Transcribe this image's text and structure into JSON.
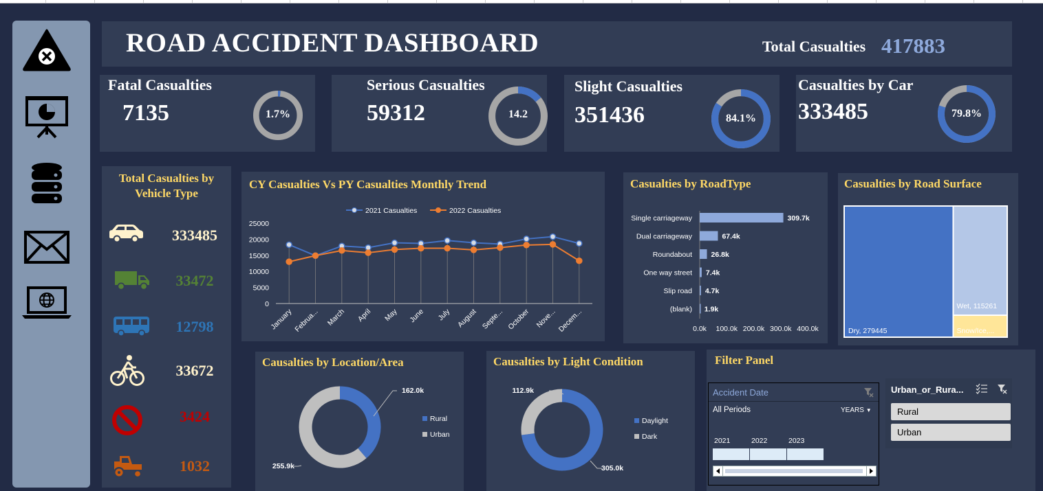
{
  "header": {
    "title": "ROAD ACCIDENT DASHBOARD",
    "total_label": "Total Casualties",
    "total_value": "417883"
  },
  "sidebar": {
    "icons": [
      "warning-icon",
      "presentation-icon",
      "database-icon",
      "mail-icon",
      "laptop-globe-icon"
    ]
  },
  "kpis": [
    {
      "label": "Fatal Casualties",
      "value": "7135",
      "pct_label": "1.7%",
      "pct": 1.7
    },
    {
      "label": "Serious Casualties",
      "value": "59312",
      "pct_label": "14.2",
      "pct": 14.2
    },
    {
      "label": "Slight Casualties",
      "value": "351436",
      "pct_label": "84.1%",
      "pct": 84.1
    },
    {
      "label": "Casualties by Car",
      "value": "333485",
      "pct_label": "79.8%",
      "pct": 79.8
    }
  ],
  "colors": {
    "accent_blue": "#4472c4",
    "ring_grey": "#a6a6a6",
    "accent_orange": "#ed7d31",
    "title_yellow": "#ffd966",
    "light_blue": "#8ea9db",
    "total_value": "#8ea9db"
  },
  "vehicle_type": {
    "title_line1": "Total Casualties by",
    "title_line2": "Vehicle Type",
    "items": [
      {
        "icon": "car-icon",
        "value": "333485",
        "color": "#fff2cc"
      },
      {
        "icon": "truck-icon",
        "value": "33472",
        "color": "#548235"
      },
      {
        "icon": "bus-icon",
        "value": "12798",
        "color": "#2e75b6"
      },
      {
        "icon": "bicycle-icon",
        "value": "33672",
        "color": "#fff2cc"
      },
      {
        "icon": "prohibited-icon",
        "value": "3424",
        "color": "#c00000"
      },
      {
        "icon": "tractor-icon",
        "value": "1032",
        "color": "#c55a11"
      }
    ]
  },
  "monthly_trend": {
    "title": "CY Casualties Vs PY Casualties Monthly Trend"
  },
  "road_type": {
    "title": "Casualties by RoadType"
  },
  "road_surface": {
    "title": "Casualties by Road Surface"
  },
  "location": {
    "title": "Causalties by Location/Area"
  },
  "light": {
    "title": "Causalties by Light Condition"
  },
  "filter_panel": {
    "title": "Filter Panel",
    "accident_date": {
      "title": "Accident Date",
      "period": "All Periods",
      "unit": "YEARS",
      "years": [
        "2021",
        "2022",
        "2023"
      ]
    },
    "urban_rural": {
      "title": "Urban_or_Rura...",
      "options": [
        "Rural",
        "Urban"
      ]
    }
  },
  "chart_data": [
    {
      "type": "line",
      "title": "CY Casualties Vs PY Casualties Monthly Trend",
      "categories": [
        "January",
        "Februa...",
        "March",
        "April",
        "May",
        "June",
        "July",
        "August",
        "Septe...",
        "October",
        "Nove...",
        "Decem..."
      ],
      "series": [
        {
          "name": "2021 Casualties",
          "color": "#4472c4",
          "values": [
            18300,
            14900,
            17900,
            17400,
            18900,
            18700,
            19600,
            18900,
            18500,
            20100,
            20800,
            18700
          ]
        },
        {
          "name": "2022 Casualties",
          "color": "#ed7d31",
          "values": [
            13000,
            14900,
            16500,
            15800,
            16800,
            17200,
            17200,
            16700,
            17400,
            18200,
            18400,
            13300
          ]
        }
      ],
      "ylim": [
        0,
        25000
      ],
      "yticks": [
        0,
        5000,
        10000,
        15000,
        20000,
        25000
      ],
      "legend": "top"
    },
    {
      "type": "bar",
      "orientation": "horizontal",
      "title": "Casualties by RoadType",
      "categories": [
        "Single carriageway",
        "Dual carriageway",
        "Roundabout",
        "One way street",
        "Slip road",
        "(blank)"
      ],
      "values": [
        309700,
        67400,
        26800,
        7400,
        4700,
        1900
      ],
      "labels": [
        "309.7k",
        "67.4k",
        "26.8k",
        "7.4k",
        "4.7k",
        "1.9k"
      ],
      "xlim": [
        0,
        400000
      ],
      "xticks": [
        "0.0k",
        "100.0k",
        "200.0k",
        "300.0k",
        "400.0k"
      ]
    },
    {
      "type": "treemap",
      "title": "Casualties by Road Surface",
      "items": [
        {
          "name": "Dry",
          "value": 279445,
          "label": "Dry, 279445",
          "color": "#4472c4"
        },
        {
          "name": "Wet",
          "value": 115261,
          "label": "Wet, 115261",
          "color": "#b4c7e7"
        },
        {
          "name": "Snow/Ice",
          "value": 23177,
          "label": "Snow/Ice,...",
          "color": "#ffe699"
        }
      ]
    },
    {
      "type": "pie",
      "title": "Causalties by Location/Area",
      "donut": true,
      "slices": [
        {
          "name": "Rural",
          "value": 162000,
          "label": "162.0k",
          "color": "#4472c4"
        },
        {
          "name": "Urban",
          "value": 255900,
          "label": "255.9k",
          "color": "#bfbfbf"
        }
      ],
      "legend": "right"
    },
    {
      "type": "pie",
      "title": "Causalties by Light Condition",
      "donut": true,
      "slices": [
        {
          "name": "Daylight",
          "value": 305000,
          "label": "305.0k",
          "color": "#4472c4"
        },
        {
          "name": "Dark",
          "value": 112900,
          "label": "112.9k",
          "color": "#bfbfbf"
        }
      ],
      "legend": "right"
    }
  ]
}
